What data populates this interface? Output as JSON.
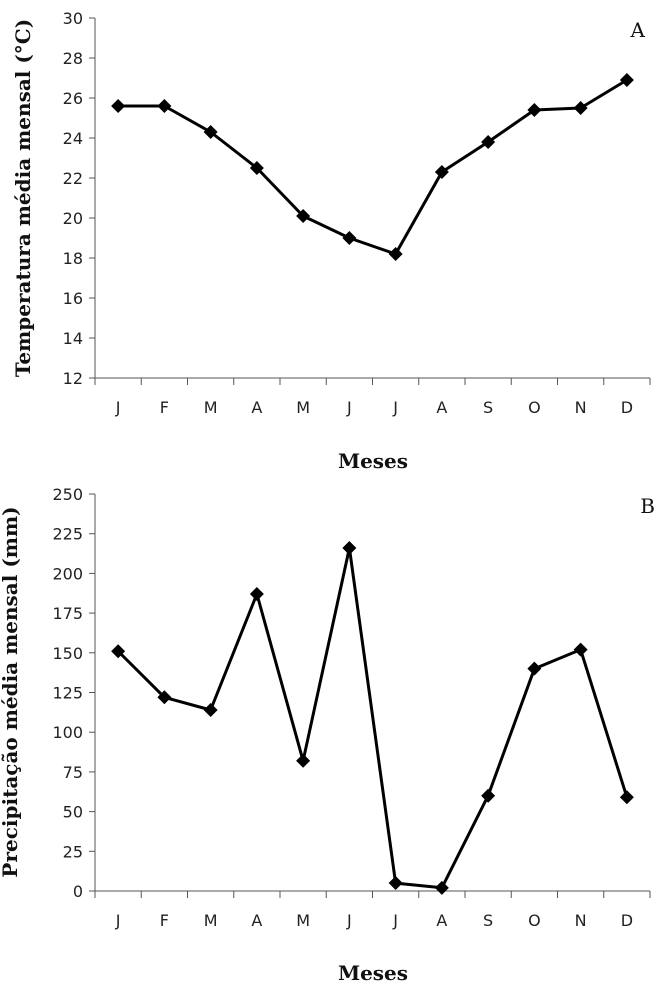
{
  "chart_data": [
    {
      "type": "line",
      "panel_label": "A",
      "title": "",
      "xlabel": "Meses",
      "ylabel": "Temperatura média mensal (°C)",
      "categories": [
        "J",
        "F",
        "M",
        "A",
        "M",
        "J",
        "J",
        "A",
        "S",
        "O",
        "N",
        "D"
      ],
      "series": [
        {
          "values": [
            25.6,
            25.6,
            24.3,
            22.5,
            20.1,
            19.0,
            18.2,
            22.3,
            23.8,
            25.4,
            25.5,
            26.9
          ]
        }
      ],
      "ylim": [
        12,
        30
      ],
      "yticks": [
        12,
        14,
        16,
        18,
        20,
        22,
        24,
        26,
        28,
        30
      ],
      "grid": false,
      "legend": "none",
      "marker": "diamond",
      "line_color": "#000000"
    },
    {
      "type": "line",
      "panel_label": "B",
      "title": "",
      "xlabel": "Meses",
      "ylabel": "Precipitação média mensal (mm)",
      "categories": [
        "J",
        "F",
        "M",
        "A",
        "M",
        "J",
        "J",
        "A",
        "S",
        "O",
        "N",
        "D"
      ],
      "series": [
        {
          "values": [
            151,
            122,
            114,
            187,
            82,
            216,
            5,
            2,
            60,
            140,
            152,
            59
          ]
        }
      ],
      "ylim": [
        0,
        250
      ],
      "yticks": [
        0,
        25,
        50,
        75,
        100,
        125,
        150,
        175,
        200,
        225,
        250
      ],
      "grid": false,
      "legend": "none",
      "marker": "diamond",
      "line_color": "#000000"
    }
  ]
}
